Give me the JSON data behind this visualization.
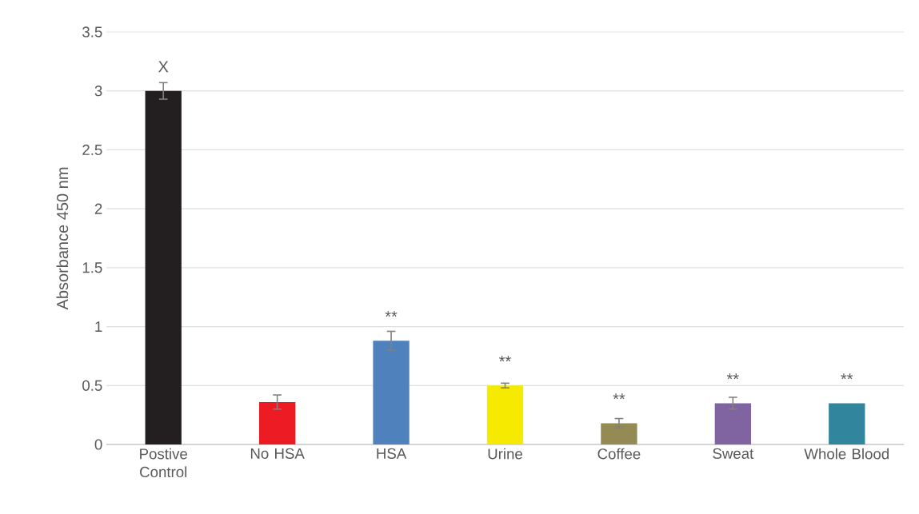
{
  "chart_data": {
    "type": "bar",
    "ylabel": "Absorbance 450 nm",
    "categories": [
      "Postive Control",
      "No HSA",
      "HSA",
      "Urine",
      "Coffee",
      "Sweat",
      "Whole Blood"
    ],
    "values": [
      3.0,
      0.36,
      0.88,
      0.5,
      0.18,
      0.35,
      0.35
    ],
    "errors": [
      0.07,
      0.06,
      0.08,
      0.02,
      0.04,
      0.05,
      null
    ],
    "colors": [
      "#231f20",
      "#ed1c24",
      "#4f81bd",
      "#f6eb00",
      "#948a54",
      "#8064a2",
      "#31859c"
    ],
    "ylim": [
      0,
      3.5
    ],
    "yticks": [
      0,
      0.5,
      1,
      1.5,
      2,
      2.5,
      3,
      3.5
    ],
    "grid": "y",
    "annotations": [
      {
        "text": "X",
        "x": "Postive Control",
        "y": 3.0
      },
      {
        "text": "**",
        "x": "HSA",
        "y": 0.88
      },
      {
        "text": "**",
        "x": "Urine",
        "y": 0.5
      },
      {
        "text": "**",
        "x": "Coffee",
        "y": 0.18
      },
      {
        "text": "**",
        "x": "Sweat",
        "y": 0.35
      },
      {
        "text": "**",
        "x": "Whole Blood",
        "y": 0.35
      }
    ]
  }
}
